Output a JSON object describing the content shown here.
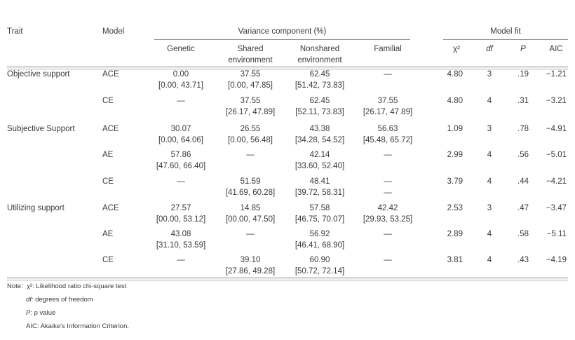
{
  "headers": {
    "trait": "Trait",
    "model": "Model",
    "variance_group": "Variance component (%)",
    "fit_group": "Model fit",
    "genetic": "Genetic",
    "shared_1": "Shared",
    "shared_2": "environment",
    "nonshared_1": "Nonshared",
    "nonshared_2": "environment",
    "familial": "Familial",
    "chi": "χ²",
    "df": "df",
    "p": "P",
    "aic": "AIC"
  },
  "rows": [
    {
      "trait": "Objective support",
      "model": "ACE",
      "genetic": {
        "v": "0.00",
        "ci": "[0.00, 43.71]"
      },
      "shared": {
        "v": "37.55",
        "ci": "[0.00, 47.85]"
      },
      "nonshared": {
        "v": "62.45",
        "ci": "[51.42, 73.83]"
      },
      "familial": {
        "v": "—",
        "ci": ""
      },
      "chi": "4.80",
      "df": "3",
      "p": ".19",
      "aic": "−1.21"
    },
    {
      "trait": "",
      "model": "CE",
      "genetic": {
        "v": "—",
        "ci": ""
      },
      "shared": {
        "v": "37.55",
        "ci": "[26.17, 47.89]"
      },
      "nonshared": {
        "v": "62.45",
        "ci": "[52.11, 73.83]"
      },
      "familial": {
        "v": "37.55",
        "ci": "[26.17, 47.89]"
      },
      "chi": "4.80",
      "df": "4",
      "p": ".31",
      "aic": "−3.21"
    },
    {
      "trait": "Subjective Support",
      "model": "ACE",
      "genetic": {
        "v": "30.07",
        "ci": "[0.00, 64.06]"
      },
      "shared": {
        "v": "26.55",
        "ci": "[0.00, 56.48]"
      },
      "nonshared": {
        "v": "43.38",
        "ci": "[34.28, 54.52]"
      },
      "familial": {
        "v": "56.63",
        "ci": "[45.48, 65.72]"
      },
      "chi": "1.09",
      "df": "3",
      "p": ".78",
      "aic": "−4.91"
    },
    {
      "trait": "",
      "model": "AE",
      "genetic": {
        "v": "57.86",
        "ci": "[47.60, 66.40]"
      },
      "shared": {
        "v": "—",
        "ci": ""
      },
      "nonshared": {
        "v": "42.14",
        "ci": "[33.60, 52.40]"
      },
      "familial": {
        "v": "—",
        "ci": ""
      },
      "chi": "2.99",
      "df": "4",
      "p": ".56",
      "aic": "−5.01"
    },
    {
      "trait": "",
      "model": "CE",
      "genetic": {
        "v": "—",
        "ci": ""
      },
      "shared": {
        "v": "51.59",
        "ci": "[41.69, 60.28]"
      },
      "nonshared": {
        "v": "48.41",
        "ci": "[39.72, 58.31]"
      },
      "familial": {
        "v": "—",
        "ci": "—"
      },
      "chi": "3.79",
      "df": "4",
      "p": ".44",
      "aic": "−4.21"
    },
    {
      "trait": "Utilizing support",
      "model": "ACE",
      "genetic": {
        "v": "27.57",
        "ci": "[00.00, 53.12]"
      },
      "shared": {
        "v": "14.85",
        "ci": "[00.00, 47.50]"
      },
      "nonshared": {
        "v": "57.58",
        "ci": "[46.75, 70.07]"
      },
      "familial": {
        "v": "42.42",
        "ci": "[29.93, 53.25]"
      },
      "chi": "2.53",
      "df": "3",
      "p": ".47",
      "aic": "−3.47"
    },
    {
      "trait": "",
      "model": "AE",
      "genetic": {
        "v": "43.08",
        "ci": "[31.10, 53.59]"
      },
      "shared": {
        "v": "—",
        "ci": ""
      },
      "nonshared": {
        "v": "56.92",
        "ci": "[46.41, 68.90]"
      },
      "familial": {
        "v": "—",
        "ci": ""
      },
      "chi": "2.89",
      "df": "4",
      "p": ".58",
      "aic": "−5.11"
    },
    {
      "trait": "",
      "model": "CE",
      "genetic": {
        "v": "—",
        "ci": ""
      },
      "shared": {
        "v": "39.10",
        "ci": "[27.86, 49.28]"
      },
      "nonshared": {
        "v": "60.90",
        "ci": "[50.72, 72.14]"
      },
      "familial": {
        "v": "—",
        "ci": ""
      },
      "chi": "3.81",
      "df": "4",
      "p": ".43",
      "aic": "−4.19"
    }
  ],
  "notes": {
    "prefix": "Note:",
    "chi_sym": "χ²",
    "chi_text": ": Likelihood ratio chi-square test",
    "df_sym": "df:",
    "df_text": " degrees of freedom",
    "p_sym": "P:",
    "p_text": " p value",
    "aic": "AIC: Akaike's Information Criterion."
  }
}
